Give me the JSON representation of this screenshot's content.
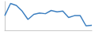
{
  "chart_data": {
    "type": "line",
    "categories": [
      null,
      null,
      null,
      null,
      null,
      null,
      null,
      null,
      null,
      null,
      null,
      null,
      null,
      null,
      null,
      null
    ],
    "values": [
      23,
      42,
      39,
      30,
      17,
      25,
      27,
      26,
      31,
      29,
      30,
      20,
      23,
      23,
      7,
      8
    ],
    "color": "#3c7fc0",
    "ylim": [
      0,
      45
    ],
    "grid": false,
    "tick_labels": false
  }
}
